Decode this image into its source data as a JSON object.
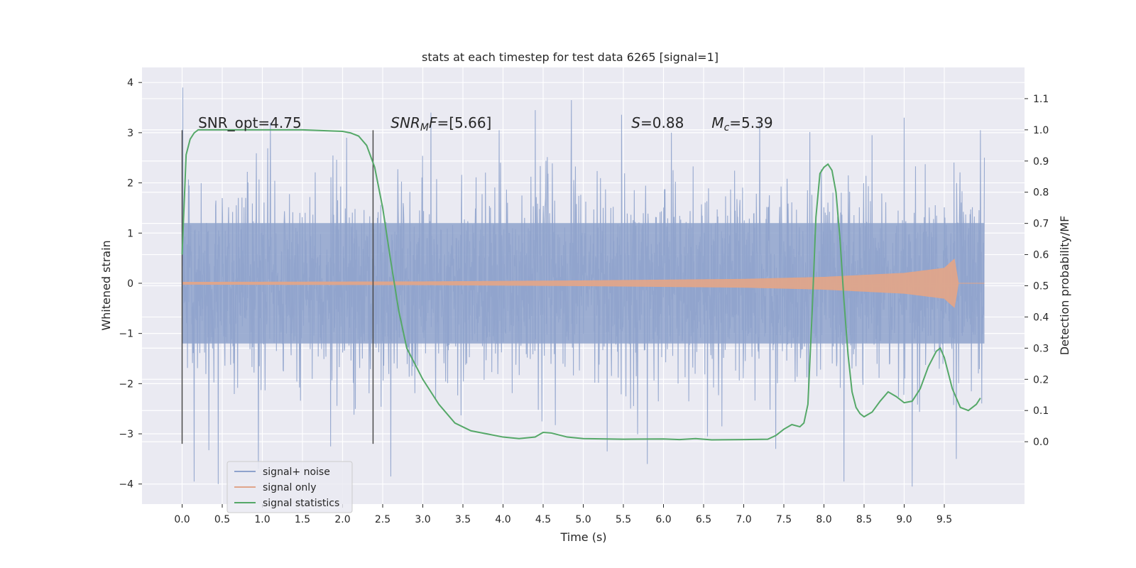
{
  "chart_data": {
    "type": "line",
    "title": "stats at each timestep for test data 6265 [signal=1]",
    "xlabel": "Time (s)",
    "ylabel": "Whitened strain",
    "y2label": "Detection probability/MF",
    "xlim": [
      -0.5,
      10.5
    ],
    "ylim": [
      -4.4,
      4.3
    ],
    "y2lim": [
      -0.2,
      1.2
    ],
    "xticks": [
      0.0,
      0.5,
      1.0,
      1.5,
      2.0,
      2.5,
      3.0,
      3.5,
      4.0,
      4.5,
      5.0,
      5.5,
      6.0,
      6.5,
      7.0,
      7.5,
      8.0,
      8.5,
      9.0,
      9.5
    ],
    "xtick_labels": [
      "0.0",
      "0.5",
      "1.0",
      "1.5",
      "2.0",
      "2.5",
      "3.0",
      "3.5",
      "4.0",
      "4.5",
      "5.0",
      "5.5",
      "6.0",
      "6.5",
      "7.0",
      "7.5",
      "8.0",
      "8.5",
      "9.0",
      "9.5"
    ],
    "yticks": [
      4,
      3,
      2,
      1,
      0,
      -1,
      -2,
      -3,
      -4
    ],
    "ytick_labels": [
      "4",
      "3",
      "2",
      "1",
      "0",
      "−1",
      "−2",
      "−3",
      "−4"
    ],
    "y2ticks": [
      1.1,
      1.0,
      0.9,
      0.8,
      0.7,
      0.6,
      0.5,
      0.4,
      0.3,
      0.2,
      0.1,
      0.0
    ],
    "y2tick_labels": [
      "1.1",
      "1.0",
      "0.9",
      "0.8",
      "0.7",
      "0.6",
      "0.5",
      "0.4",
      "0.3",
      "0.2",
      "0.1",
      "0.0"
    ],
    "grid": true,
    "legend_position": "lower-left",
    "vertical_lines": [
      {
        "x": 0.0,
        "y_from": -3.2,
        "y_to": 3.05
      },
      {
        "x": 2.38,
        "y_from": -3.2,
        "y_to": 3.05
      }
    ],
    "annotations": [
      {
        "text": "SNR_opt=4.75",
        "x": 0.2,
        "y": 3.1
      },
      {
        "text": "SNR_MF=[5.66]",
        "x": 2.6,
        "y": 3.1
      },
      {
        "text": "S=0.88",
        "x": 5.6,
        "y": 3.1
      },
      {
        "text": "M_c=5.39",
        "x": 6.6,
        "y": 3.1
      }
    ],
    "series": [
      {
        "name": "signal+ noise",
        "color": "#8fa3cc",
        "axis": "left",
        "x_range": [
          0.0,
          10.0
        ],
        "envelope_core": 1.2,
        "peak_values": [
          {
            "x": 0.01,
            "y": 3.9
          },
          {
            "x": 0.15,
            "y": -3.95
          },
          {
            "x": 0.45,
            "y": -4.0
          },
          {
            "x": 0.95,
            "y": -3.7
          },
          {
            "x": 1.1,
            "y": 3.2
          },
          {
            "x": 1.85,
            "y": -3.25
          },
          {
            "x": 2.05,
            "y": 2.9
          },
          {
            "x": 2.6,
            "y": -3.85
          },
          {
            "x": 3.1,
            "y": 3.4
          },
          {
            "x": 3.95,
            "y": 3.05
          },
          {
            "x": 4.4,
            "y": 3.45
          },
          {
            "x": 4.85,
            "y": 3.65
          },
          {
            "x": 5.3,
            "y": -3.35
          },
          {
            "x": 5.8,
            "y": -3.6
          },
          {
            "x": 6.1,
            "y": 3.0
          },
          {
            "x": 6.55,
            "y": -3.05
          },
          {
            "x": 7.2,
            "y": 3.2
          },
          {
            "x": 7.4,
            "y": -3.3
          },
          {
            "x": 8.25,
            "y": -3.95
          },
          {
            "x": 8.6,
            "y": 2.95
          },
          {
            "x": 9.0,
            "y": 3.3
          },
          {
            "x": 9.1,
            "y": -4.05
          },
          {
            "x": 9.65,
            "y": -3.5
          },
          {
            "x": 9.95,
            "y": 3.05
          }
        ]
      },
      {
        "name": "signal only",
        "color": "#e0a58a",
        "axis": "left",
        "x_range": [
          0.0,
          10.0
        ],
        "amplitude": [
          {
            "x": 0.0,
            "y": 0.02
          },
          {
            "x": 3.0,
            "y": 0.03
          },
          {
            "x": 5.0,
            "y": 0.05
          },
          {
            "x": 7.0,
            "y": 0.08
          },
          {
            "x": 8.0,
            "y": 0.12
          },
          {
            "x": 9.0,
            "y": 0.2
          },
          {
            "x": 9.5,
            "y": 0.3
          },
          {
            "x": 9.64,
            "y": 0.5
          },
          {
            "x": 9.66,
            "y": 0.0
          }
        ]
      },
      {
        "name": "signal statistics",
        "color": "#55a868",
        "axis": "right",
        "x": [
          0.0,
          0.05,
          0.1,
          0.15,
          0.2,
          0.3,
          0.5,
          1.0,
          1.5,
          2.0,
          2.1,
          2.2,
          2.3,
          2.4,
          2.5,
          2.6,
          2.7,
          2.8,
          3.0,
          3.2,
          3.4,
          3.6,
          3.8,
          4.0,
          4.2,
          4.4,
          4.5,
          4.6,
          4.8,
          5.0,
          5.5,
          6.0,
          6.2,
          6.4,
          6.6,
          7.0,
          7.3,
          7.4,
          7.5,
          7.6,
          7.7,
          7.75,
          7.8,
          7.85,
          7.9,
          7.95,
          8.0,
          8.05,
          8.1,
          8.15,
          8.2,
          8.25,
          8.3,
          8.35,
          8.4,
          8.45,
          8.5,
          8.6,
          8.7,
          8.8,
          8.9,
          9.0,
          9.1,
          9.2,
          9.3,
          9.4,
          9.45,
          9.5,
          9.6,
          9.7,
          9.8,
          9.9,
          9.95
        ],
        "values": [
          0.6,
          0.92,
          0.97,
          0.99,
          1.0,
          1.0,
          1.0,
          1.0,
          1.0,
          0.995,
          0.99,
          0.98,
          0.95,
          0.88,
          0.75,
          0.58,
          0.42,
          0.3,
          0.2,
          0.12,
          0.06,
          0.035,
          0.025,
          0.015,
          0.01,
          0.015,
          0.03,
          0.028,
          0.015,
          0.01,
          0.008,
          0.009,
          0.007,
          0.01,
          0.006,
          0.007,
          0.008,
          0.02,
          0.04,
          0.055,
          0.048,
          0.06,
          0.12,
          0.4,
          0.72,
          0.86,
          0.88,
          0.89,
          0.87,
          0.8,
          0.65,
          0.45,
          0.28,
          0.16,
          0.11,
          0.09,
          0.08,
          0.095,
          0.13,
          0.16,
          0.145,
          0.125,
          0.13,
          0.17,
          0.24,
          0.29,
          0.3,
          0.27,
          0.17,
          0.11,
          0.1,
          0.12,
          0.14
        ]
      }
    ]
  }
}
